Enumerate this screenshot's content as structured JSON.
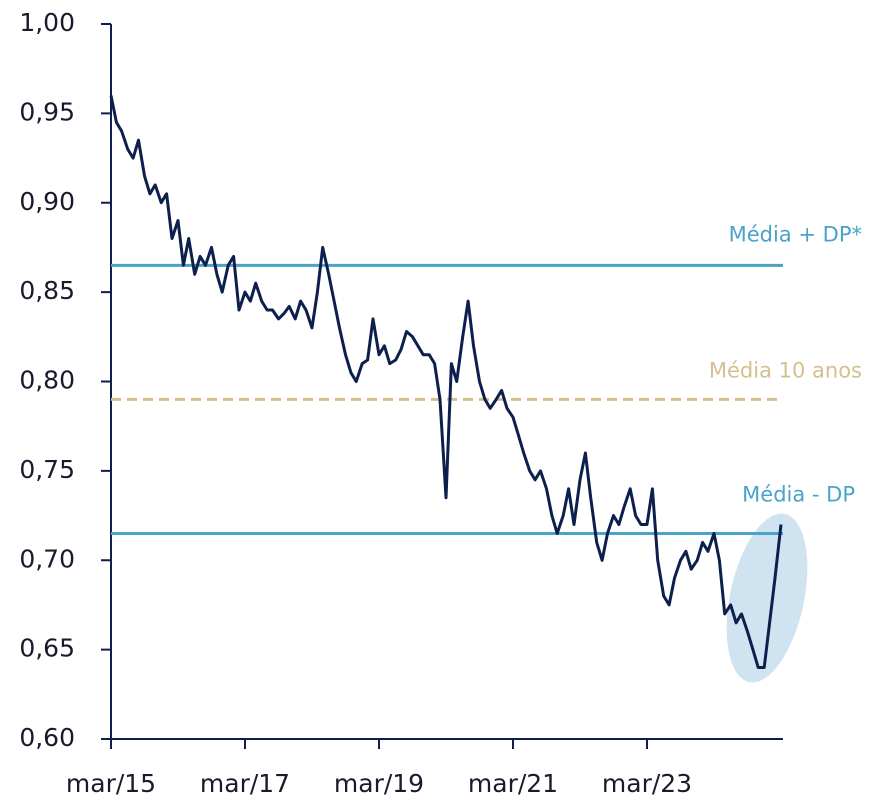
{
  "chart_data": {
    "type": "line",
    "x": [
      2015.17,
      2015.25,
      2015.33,
      2015.42,
      2015.5,
      2015.58,
      2015.67,
      2015.75,
      2015.83,
      2015.92,
      2016.0,
      2016.08,
      2016.17,
      2016.25,
      2016.33,
      2016.42,
      2016.5,
      2016.58,
      2016.67,
      2016.75,
      2016.83,
      2016.92,
      2017.0,
      2017.08,
      2017.17,
      2017.25,
      2017.33,
      2017.42,
      2017.5,
      2017.58,
      2017.67,
      2017.75,
      2017.83,
      2017.92,
      2018.0,
      2018.08,
      2018.17,
      2018.25,
      2018.33,
      2018.42,
      2018.5,
      2018.58,
      2018.67,
      2018.75,
      2018.83,
      2018.92,
      2019.0,
      2019.08,
      2019.17,
      2019.25,
      2019.33,
      2019.42,
      2019.5,
      2019.58,
      2019.67,
      2019.75,
      2019.83,
      2019.92,
      2020.0,
      2020.08,
      2020.17,
      2020.25,
      2020.33,
      2020.42,
      2020.5,
      2020.58,
      2020.67,
      2020.75,
      2020.83,
      2020.92,
      2021.0,
      2021.08,
      2021.17,
      2021.25,
      2021.33,
      2021.42,
      2021.5,
      2021.58,
      2021.67,
      2021.75,
      2021.83,
      2021.92,
      2022.0,
      2022.08,
      2022.17,
      2022.25,
      2022.33,
      2022.42,
      2022.5,
      2022.58,
      2022.67,
      2022.75,
      2022.83,
      2022.92,
      2023.0,
      2023.08,
      2023.17,
      2023.25,
      2023.33,
      2023.42,
      2023.5,
      2023.58,
      2023.67,
      2023.75,
      2023.83,
      2023.92,
      2024.0,
      2024.08,
      2024.17,
      2024.25,
      2024.33,
      2024.42,
      2024.5,
      2024.58,
      2024.67,
      2024.75,
      2024.83,
      2024.92,
      2025.0,
      2025.08,
      2025.17
    ],
    "series": [
      {
        "color": "#0d1f4d",
        "values": [
          0.96,
          0.945,
          0.94,
          0.93,
          0.925,
          0.935,
          0.915,
          0.905,
          0.91,
          0.9,
          0.905,
          0.88,
          0.89,
          0.865,
          0.88,
          0.86,
          0.87,
          0.865,
          0.875,
          0.86,
          0.85,
          0.865,
          0.87,
          0.84,
          0.85,
          0.845,
          0.855,
          0.845,
          0.84,
          0.84,
          0.835,
          0.838,
          0.842,
          0.835,
          0.845,
          0.84,
          0.83,
          0.85,
          0.875,
          0.86,
          0.845,
          0.83,
          0.815,
          0.805,
          0.8,
          0.81,
          0.812,
          0.835,
          0.815,
          0.82,
          0.81,
          0.812,
          0.818,
          0.828,
          0.825,
          0.82,
          0.815,
          0.815,
          0.81,
          0.79,
          0.735,
          0.81,
          0.8,
          0.825,
          0.845,
          0.82,
          0.8,
          0.79,
          0.785,
          0.79,
          0.795,
          0.785,
          0.78,
          0.77,
          0.76,
          0.75,
          0.745,
          0.75,
          0.74,
          0.725,
          0.715,
          0.725,
          0.74,
          0.72,
          0.745,
          0.76,
          0.735,
          0.71,
          0.7,
          0.715,
          0.725,
          0.72,
          0.73,
          0.74,
          0.725,
          0.72,
          0.72,
          0.74,
          0.7,
          0.68,
          0.675,
          0.69,
          0.7,
          0.705,
          0.695,
          0.7,
          0.71,
          0.705,
          0.715,
          0.7,
          0.67,
          0.675,
          0.665,
          0.67,
          0.66,
          0.65,
          0.64,
          0.64,
          0.665,
          0.69,
          0.72
        ]
      }
    ],
    "reference_lines": [
      {
        "label": "Média + DP*",
        "value": 0.865,
        "color": "#4aa3c8",
        "dashed": false
      },
      {
        "label": "Média 10 anos",
        "value": 0.79,
        "color": "#d4c08e",
        "dashed": true
      },
      {
        "label": "Média - DP",
        "value": 0.715,
        "color": "#4aa3c8",
        "dashed": false
      }
    ],
    "xlim": [
      2015.17,
      2025.2
    ],
    "xticks": [
      {
        "value": 2015.17,
        "label": "mar/15"
      },
      {
        "value": 2017.17,
        "label": "mar/17"
      },
      {
        "value": 2019.17,
        "label": "mar/19"
      },
      {
        "value": 2021.17,
        "label": "mar/21"
      },
      {
        "value": 2023.17,
        "label": "mar/23"
      }
    ],
    "ylim": [
      0.6,
      1.0
    ],
    "yticks": [
      {
        "value": 0.6,
        "label": "0,60"
      },
      {
        "value": 0.65,
        "label": "0,65"
      },
      {
        "value": 0.7,
        "label": "0,70"
      },
      {
        "value": 0.75,
        "label": "0,75"
      },
      {
        "value": 0.8,
        "label": "0,80"
      },
      {
        "value": 0.85,
        "label": "0,85"
      },
      {
        "value": 0.9,
        "label": "0,90"
      },
      {
        "value": 0.95,
        "label": "0,95"
      },
      {
        "value": 1.0,
        "label": "1,00"
      }
    ]
  }
}
